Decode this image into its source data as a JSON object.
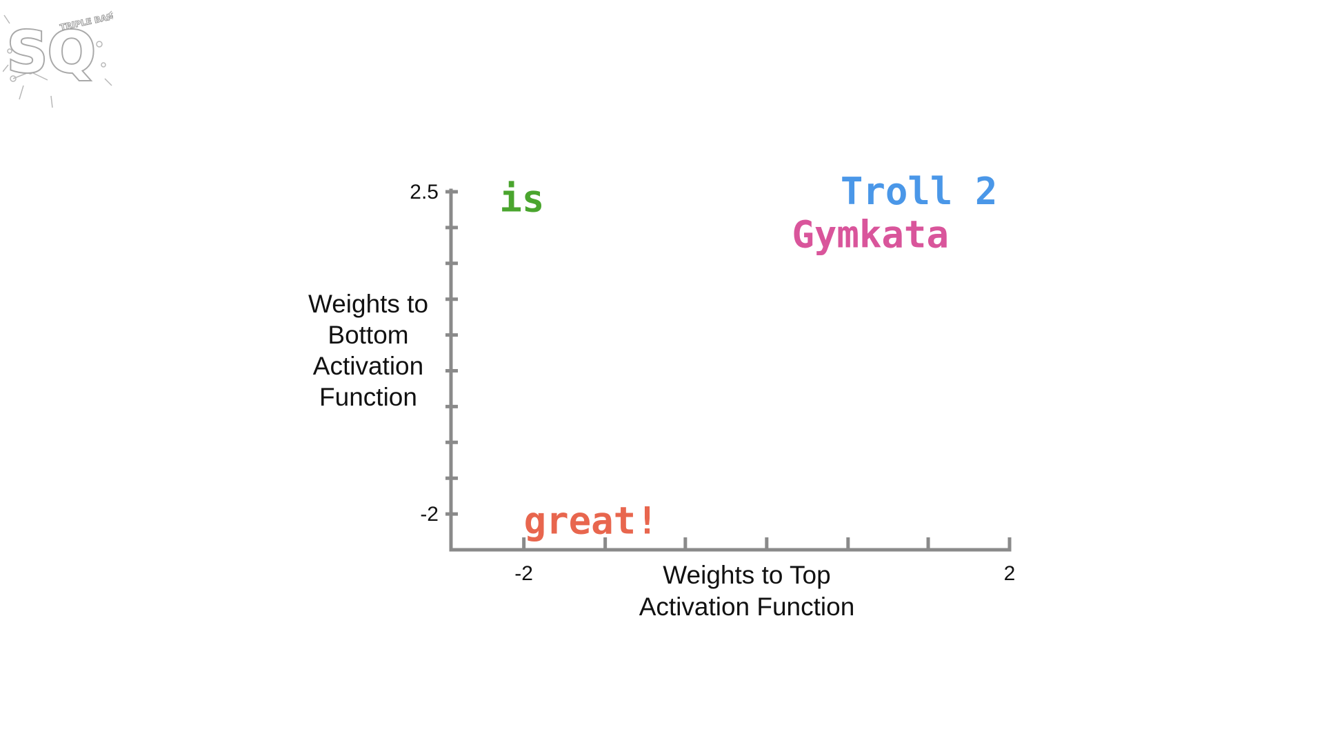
{
  "logo": {
    "letters": "SQ",
    "tagline": "TRIPLE BAM!!!"
  },
  "chart_data": {
    "type": "scatter",
    "xlabel": [
      "Weights to Top",
      "Activation Function"
    ],
    "ylabel": [
      "Weights to",
      "Bottom",
      "Activation",
      "Function"
    ],
    "x_tick_labels": [
      {
        "value": -2,
        "label": "-2"
      },
      {
        "value": 2,
        "label": "2"
      }
    ],
    "y_tick_labels": [
      {
        "value": -2,
        "label": "-2"
      },
      {
        "value": 2.5,
        "label": "2.5"
      }
    ],
    "x_ticks": [
      -2,
      -1.33,
      -0.67,
      0,
      0.67,
      1.33,
      2
    ],
    "y_ticks": [
      -2,
      -1.5,
      -1,
      -0.5,
      0,
      0.5,
      1,
      1.5,
      2,
      2.5
    ],
    "xlim": [
      -2.6,
      2
    ],
    "ylim": [
      -2.5,
      2.5
    ],
    "grid": false,
    "points": [
      {
        "label": "is",
        "x": -2.2,
        "y": 2.4,
        "color": "#4aa52e"
      },
      {
        "label": "Troll 2",
        "x": 1.9,
        "y": 2.5,
        "color": "#4a97e8"
      },
      {
        "label": "Gymkata",
        "x": 1.5,
        "y": 1.9,
        "color": "#d9559b"
      },
      {
        "label": "great!",
        "x": -2.0,
        "y": -2.1,
        "color": "#e8664e"
      }
    ]
  }
}
